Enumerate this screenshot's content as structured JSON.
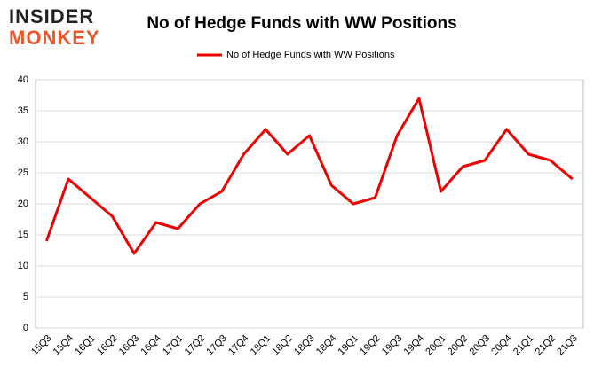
{
  "logo": [
    "INSIDER",
    "MONKEY"
  ],
  "chart_data": {
    "type": "line",
    "title": "No of Hedge Funds with WW Positions",
    "categories": [
      "15Q3",
      "15Q4",
      "16Q1",
      "16Q2",
      "16Q3",
      "16Q4",
      "17Q1",
      "17Q2",
      "17Q3",
      "17Q4",
      "18Q1",
      "18Q2",
      "18Q3",
      "18Q4",
      "19Q1",
      "19Q2",
      "19Q3",
      "19Q4",
      "20Q1",
      "20Q2",
      "20Q3",
      "20Q4",
      "21Q1",
      "21Q2",
      "21Q3"
    ],
    "series": [
      {
        "name": "No of Hedge Funds with WW Positions",
        "color": "#ee0000",
        "values": [
          14,
          24,
          21,
          18,
          12,
          17,
          16,
          20,
          22,
          28,
          32,
          28,
          31,
          23,
          20,
          21,
          31,
          37,
          22,
          26,
          27,
          32,
          28,
          27,
          24
        ]
      }
    ],
    "ylim": [
      0,
      40
    ],
    "yticks": [
      0,
      5,
      10,
      15,
      20,
      25,
      30,
      35,
      40
    ],
    "grid": true,
    "legend": "top"
  }
}
